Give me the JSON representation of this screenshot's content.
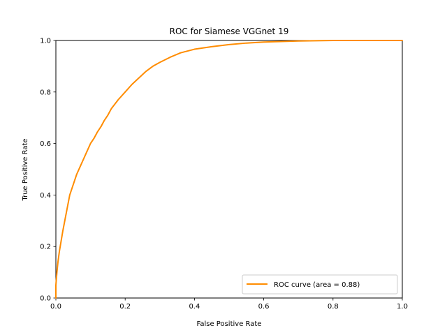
{
  "chart_data": {
    "type": "line",
    "title": "ROC for Siamese VGGnet 19",
    "xlabel": "False Positive Rate",
    "ylabel": "True Positive Rate",
    "xlim": [
      0.0,
      1.0
    ],
    "ylim": [
      0.0,
      1.0
    ],
    "xticks": [
      "0.0",
      "0.2",
      "0.4",
      "0.6",
      "0.8",
      "1.0"
    ],
    "yticks": [
      "0.0",
      "0.2",
      "0.4",
      "0.6",
      "0.8",
      "1.0"
    ],
    "grid": false,
    "legend_position": "lower right",
    "series": [
      {
        "name": "ROC curve (area = 0.88)",
        "color": "#ff8c00",
        "x": [
          0.0,
          0.0,
          0.003,
          0.006,
          0.01,
          0.015,
          0.02,
          0.03,
          0.04,
          0.05,
          0.06,
          0.07,
          0.08,
          0.09,
          0.1,
          0.11,
          0.12,
          0.13,
          0.14,
          0.15,
          0.16,
          0.18,
          0.2,
          0.22,
          0.24,
          0.26,
          0.28,
          0.3,
          0.33,
          0.36,
          0.4,
          0.45,
          0.5,
          0.55,
          0.6,
          0.65,
          0.7,
          0.75,
          0.8,
          0.9,
          1.0
        ],
        "y": [
          0.0,
          0.05,
          0.1,
          0.14,
          0.18,
          0.22,
          0.26,
          0.33,
          0.4,
          0.44,
          0.48,
          0.51,
          0.54,
          0.57,
          0.6,
          0.62,
          0.645,
          0.665,
          0.69,
          0.71,
          0.735,
          0.77,
          0.8,
          0.83,
          0.855,
          0.88,
          0.9,
          0.915,
          0.935,
          0.952,
          0.966,
          0.976,
          0.984,
          0.99,
          0.994,
          0.996,
          0.998,
          0.999,
          1.0,
          1.0,
          1.0
        ]
      }
    ]
  }
}
